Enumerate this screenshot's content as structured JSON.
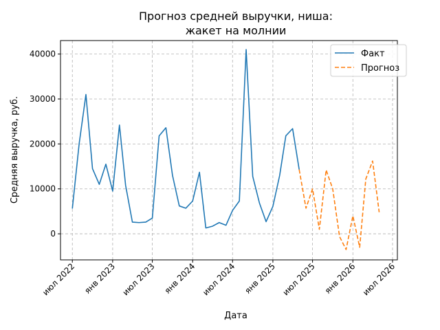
{
  "chart_data": {
    "type": "line",
    "title_line1": "Прогноз средней выручки, ниша:",
    "title_line2": "жакет на молнии",
    "xlabel": "Дата",
    "ylabel": "Средняя выручка, руб.",
    "ylim": [
      -5800,
      43000
    ],
    "yticks": [
      0,
      10000,
      20000,
      30000,
      40000
    ],
    "xlim": [
      "2022-05-08",
      "2026-07-23"
    ],
    "xticks": [
      {
        "date": "2022-07-01",
        "label": "июл 2022"
      },
      {
        "date": "2023-01-01",
        "label": "янв 2023"
      },
      {
        "date": "2023-07-01",
        "label": "июл 2023"
      },
      {
        "date": "2024-01-01",
        "label": "янв 2024"
      },
      {
        "date": "2024-07-01",
        "label": "июл 2024"
      },
      {
        "date": "2025-01-01",
        "label": "янв 2025"
      },
      {
        "date": "2025-07-01",
        "label": "июл 2025"
      },
      {
        "date": "2026-01-01",
        "label": "янв 2026"
      },
      {
        "date": "2026-07-01",
        "label": "июл 2026"
      }
    ],
    "grid": true,
    "legend_position": "top-right",
    "series": [
      {
        "name": "Факт",
        "color": "#1f77b4",
        "style": "solid",
        "points": [
          [
            "2022-07-01",
            5600
          ],
          [
            "2022-08-01",
            20000
          ],
          [
            "2022-09-01",
            31000
          ],
          [
            "2022-10-01",
            14500
          ],
          [
            "2022-11-01",
            11000
          ],
          [
            "2022-12-01",
            15500
          ],
          [
            "2023-01-01",
            9500
          ],
          [
            "2023-02-01",
            24200
          ],
          [
            "2023-03-01",
            10800
          ],
          [
            "2023-04-01",
            2600
          ],
          [
            "2023-05-01",
            2500
          ],
          [
            "2023-06-01",
            2600
          ],
          [
            "2023-07-01",
            3500
          ],
          [
            "2023-08-01",
            21800
          ],
          [
            "2023-09-01",
            23600
          ],
          [
            "2023-10-01",
            13000
          ],
          [
            "2023-11-01",
            6200
          ],
          [
            "2023-12-01",
            5700
          ],
          [
            "2024-01-01",
            7300
          ],
          [
            "2024-02-01",
            13700
          ],
          [
            "2024-03-01",
            1300
          ],
          [
            "2024-04-01",
            1700
          ],
          [
            "2024-05-01",
            2500
          ],
          [
            "2024-06-01",
            1900
          ],
          [
            "2024-07-01",
            5200
          ],
          [
            "2024-08-01",
            7300
          ],
          [
            "2024-09-01",
            41000
          ],
          [
            "2024-10-01",
            12800
          ],
          [
            "2024-11-01",
            6800
          ],
          [
            "2024-12-01",
            2700
          ],
          [
            "2025-01-01",
            6100
          ],
          [
            "2025-02-01",
            13000
          ],
          [
            "2025-03-01",
            21800
          ],
          [
            "2025-04-01",
            23400
          ],
          [
            "2025-05-01",
            14300
          ]
        ]
      },
      {
        "name": "Прогноз",
        "color": "#ff7f0e",
        "style": "dashed",
        "points": [
          [
            "2025-05-01",
            14300
          ],
          [
            "2025-06-01",
            5700
          ],
          [
            "2025-07-01",
            10000
          ],
          [
            "2025-08-01",
            1000
          ],
          [
            "2025-09-01",
            14200
          ],
          [
            "2025-10-01",
            10000
          ],
          [
            "2025-11-01",
            -600
          ],
          [
            "2025-12-01",
            -3500
          ],
          [
            "2026-01-01",
            4000
          ],
          [
            "2026-02-01",
            -3000
          ],
          [
            "2026-03-01",
            12200
          ],
          [
            "2026-04-01",
            16200
          ],
          [
            "2026-05-01",
            4800
          ]
        ]
      }
    ]
  }
}
